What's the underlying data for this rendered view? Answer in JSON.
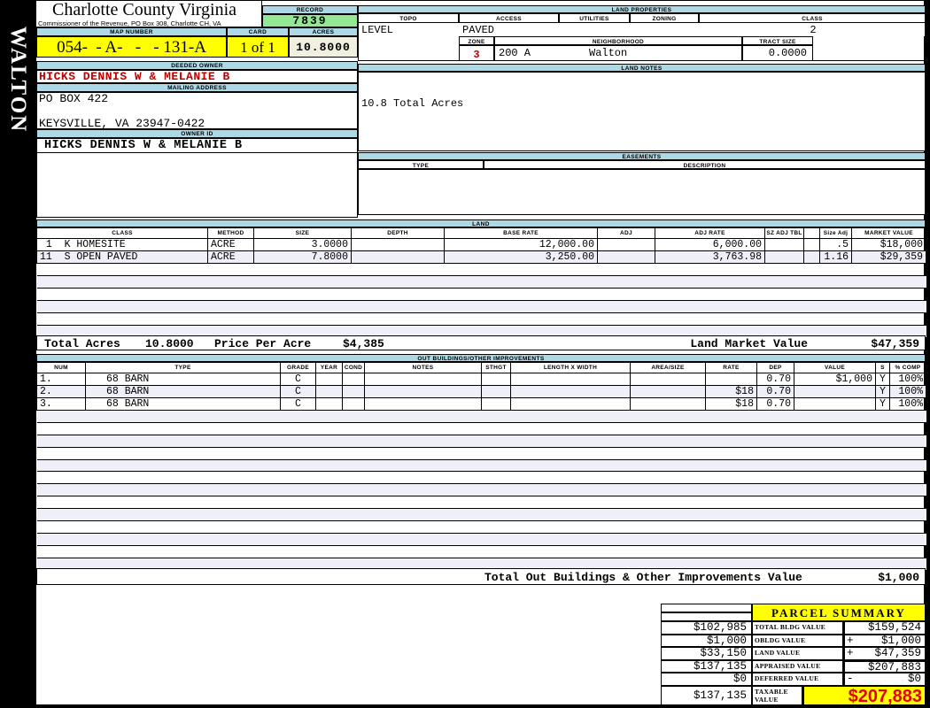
{
  "sidebar": {
    "district": "WALTON"
  },
  "header": {
    "county_title": "Charlotte County Virginia",
    "county_subtitle": "Commissioner of the Revenue, PO Box 308, Charlotte CH, VA",
    "record_label": "RECORD",
    "record_value": "7839",
    "map_number_label": "MAP NUMBER",
    "map_number_value": "054-  - A-   -   - 131-A",
    "card_label": "CARD",
    "card_value": "1 of 1",
    "acres_label": "ACRES",
    "acres_value": "10.8000"
  },
  "owner": {
    "deeded_owner_label": "DEEDED OWNER",
    "deeded_owner": "HICKS DENNIS W & MELANIE B",
    "mailing_address_label": "MAILING ADDRESS",
    "address_line1": "PO BOX 422",
    "address_line2": "KEYSVILLE, VA 23947-0422",
    "owner_id_label": "OWNER ID",
    "owner_id": "HICKS DENNIS W & MELANIE B"
  },
  "land_properties": {
    "section_label": "LAND PROPERTIES",
    "topo_label": "TOPO",
    "topo": "LEVEL",
    "access_label": "ACCESS",
    "access": "PAVED",
    "utilities_label": "UTILITIES",
    "utilities": "",
    "zoning_label": "ZONING",
    "zoning": "",
    "class_label": "CLASS",
    "class_value": "2",
    "zone_label": "ZONE",
    "zone": "3",
    "zone_code": "200 A",
    "neighborhood_label": "NEIGHBORHOOD",
    "neighborhood": "Walton",
    "tract_size_label": "TRACT SIZE",
    "tract_size": "0.0000"
  },
  "land_notes": {
    "section_label": "LAND NOTES",
    "note": "10.8 Total Acres"
  },
  "easements": {
    "section_label": "EASEMENTS",
    "type_label": "TYPE",
    "description_label": "DESCRIPTION"
  },
  "land": {
    "section_label": "LAND",
    "headers": [
      "CLASS",
      "METHOD",
      "SIZE",
      "DEPTH",
      "BASE RATE",
      "ADJ",
      "ADJ RATE",
      "SZ ADJ TBL",
      "",
      "Size Adj",
      "MARKET VALUE"
    ],
    "rows": [
      {
        "class": " 1  K HOMESITE",
        "method": "ACRE",
        "size": "3.0000",
        "depth": "",
        "base_rate": "12,000.00",
        "adj": "",
        "adj_rate": "6,000.00",
        "sz_adj_tbl": "",
        "spacer": "",
        "size_adj": ".5",
        "market_value": "$18,000"
      },
      {
        "class": "11  S OPEN PAVED",
        "method": "ACRE",
        "size": "7.8000",
        "depth": "",
        "base_rate": "3,250.00",
        "adj": "",
        "adj_rate": "3,763.98",
        "sz_adj_tbl": "",
        "spacer": "",
        "size_adj": "1.16",
        "market_value": "$29,359"
      }
    ],
    "total_acres_label": "Total Acres",
    "total_acres": "10.8000",
    "price_per_acre_label": "Price Per Acre",
    "price_per_acre": "$4,385",
    "land_market_value_label": "Land Market Value",
    "land_market_value": "$47,359"
  },
  "outbuildings": {
    "section_label": "OUT BUILDINGS/OTHER IMPROVEMENTS",
    "headers": [
      "NUM",
      "TYPE",
      "GRADE",
      "YEAR",
      "COND",
      "NOTES",
      "STHGT",
      "LENGTH X WIDTH",
      "AREA/SIZE",
      "RATE",
      "DEP",
      "VALUE",
      "S",
      "% COMP"
    ],
    "rows": [
      {
        "num": "1.",
        "type": "68 BARN",
        "grade": "C",
        "year": "",
        "cond": "",
        "notes": "",
        "sthgt": "",
        "lxw": "",
        "area": "",
        "rate": "",
        "dep": "0.70",
        "value": "$1,000",
        "s": "Y",
        "comp": "100%"
      },
      {
        "num": "2.",
        "type": "68 BARN",
        "grade": "C",
        "year": "",
        "cond": "",
        "notes": "",
        "sthgt": "",
        "lxw": "",
        "area": "",
        "rate": "$18",
        "dep": "0.70",
        "value": "",
        "s": "Y",
        "comp": "100%"
      },
      {
        "num": "3.",
        "type": "68 BARN",
        "grade": "C",
        "year": "",
        "cond": "",
        "notes": "",
        "sthgt": "",
        "lxw": "",
        "area": "",
        "rate": "$18",
        "dep": "0.70",
        "value": "",
        "s": "Y",
        "comp": "100%"
      }
    ],
    "total_label": "Total Out Buildings & Other Improvements Value",
    "total_value": "$1,000"
  },
  "summary": {
    "title": "PARCEL SUMMARY",
    "rows": [
      {
        "left": "$102,985",
        "label": "TOTAL BLDG VALUE",
        "sign": "",
        "value": "$159,524"
      },
      {
        "left": "$1,000",
        "label": "OBLDG VALUE",
        "sign": "+",
        "value": "$1,000"
      },
      {
        "left": "$33,150",
        "label": "LAND VALUE",
        "sign": "+",
        "value": "$47,359"
      },
      {
        "left": "$137,135",
        "label": "APPRAISED VALUE",
        "sign": "",
        "value": "$207,883"
      },
      {
        "left": "$0",
        "label": "DEFERRED VALUE",
        "sign": "-",
        "value": "$0"
      },
      {
        "left": "$137,135",
        "label": "TAXABLE VALUE",
        "sign": "",
        "value": "$207,883"
      }
    ],
    "colors": {
      "taxable_value_text": "#E60000",
      "highlight": "#FFFF00"
    }
  }
}
